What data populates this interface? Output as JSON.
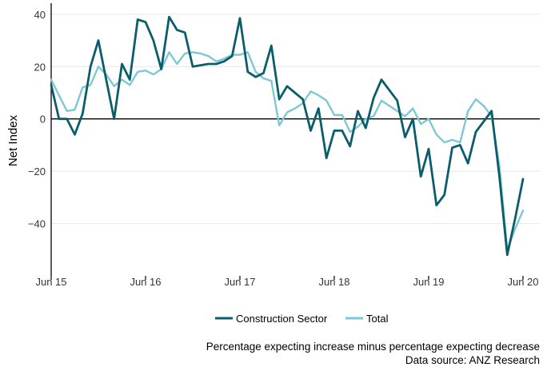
{
  "chart_data": {
    "type": "line",
    "ylabel": "Net Index",
    "xlabel": "",
    "x_start": "2015-06",
    "x_step": "month",
    "x_ticks": [
      "Jun 15",
      "Jun 16",
      "Jun 17",
      "Jun 18",
      "Jun 19",
      "Jun 20"
    ],
    "y_ticks": [
      "−40",
      "−20",
      "0",
      "20",
      "40"
    ],
    "ylim": [
      -60,
      43
    ],
    "grid": "horizontal",
    "zero_line": true,
    "legend_position": "bottom",
    "series": [
      {
        "name": "Construction Sector",
        "color": "#0b5d6b",
        "values": [
          13,
          0,
          0,
          -6,
          2,
          20,
          30,
          15,
          0,
          21,
          15,
          38,
          37,
          30,
          19,
          39,
          34,
          33,
          20,
          20.5,
          21,
          21,
          22,
          24,
          38.5,
          18,
          16,
          17.5,
          28,
          7.5,
          12.5,
          10,
          7.5,
          -4.5,
          4,
          -15,
          -4.5,
          -4.5,
          -10.5,
          3,
          -3.5,
          8,
          15,
          11,
          7,
          -7,
          0,
          -22,
          -11.5,
          -33,
          -29,
          -11,
          -10,
          -17,
          -5,
          -1,
          3,
          -22,
          -52,
          -38,
          -23
        ]
      },
      {
        "name": "Total",
        "color": "#7cc9d5",
        "values": [
          15,
          9,
          3,
          3.5,
          12,
          13,
          20,
          17,
          12.5,
          15,
          13,
          18,
          18.5,
          17,
          19,
          25.5,
          21,
          25,
          25.5,
          25,
          24,
          22,
          23,
          24.5,
          24.5,
          25.5,
          18,
          15.5,
          14.5,
          -2.5,
          2.5,
          4,
          6,
          10.5,
          9,
          7,
          1.5,
          1.5,
          -5,
          -3,
          0,
          1,
          7,
          5,
          3,
          1,
          4,
          -2,
          0,
          -6,
          -9,
          -8,
          -9,
          3,
          7.5,
          5,
          1,
          -18,
          -50,
          -42,
          -35
        ]
      }
    ]
  },
  "caption": {
    "line1": "Percentage expecting increase minus percentage expecting decrease",
    "line2": "Data source: ANZ Research"
  }
}
